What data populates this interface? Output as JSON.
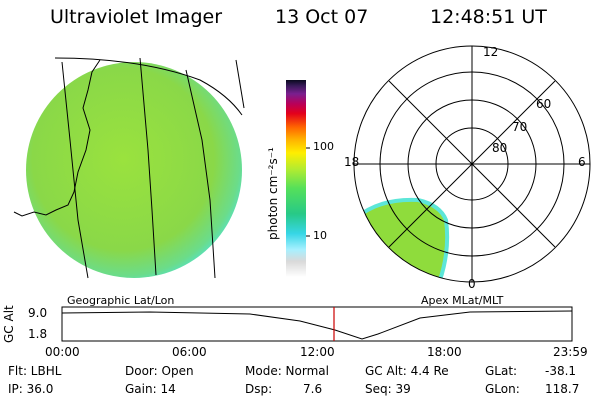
{
  "header": {
    "title": "Ultraviolet Imager",
    "date": "13 Oct 07",
    "time": "12:48:51 UT"
  },
  "colorbar": {
    "unit_label": "photon cm⁻²s⁻¹",
    "ticks": [
      "100",
      "10"
    ]
  },
  "polar_plot": {
    "hour_labels": [
      "12",
      "18",
      "6",
      "0"
    ],
    "lat_labels": [
      "60",
      "70",
      "80"
    ]
  },
  "panel_labels": {
    "left": "Geographic Lat/Lon",
    "right": "Apex MLat/MLT"
  },
  "altitude_plot": {
    "ylabel": "GC Alt",
    "yticks": [
      "9.0",
      "1.8"
    ],
    "xticks": [
      "00:00",
      "06:00",
      "12:00",
      "18:00",
      "23:59"
    ],
    "current_time_fraction": 0.534
  },
  "info": {
    "flt": "Flt: LBHL",
    "ip": "IP: 36.0",
    "door": "Door: Open",
    "gain": "Gain: 14",
    "mode": "Mode: Normal",
    "dsp_label": "Dsp:",
    "dsp_value": "7.6",
    "gc_alt": "GC Alt: 4.4 Re",
    "seq": "Seq: 39",
    "glat_label": "GLat:",
    "glat_value": "-38.1",
    "glon_label": "GLon:",
    "glon_value": "118.7"
  },
  "colors": {
    "image_green": "#8fdc3c",
    "edge_cyan": "#5ce6d8",
    "marker_red": "#cc0000"
  }
}
